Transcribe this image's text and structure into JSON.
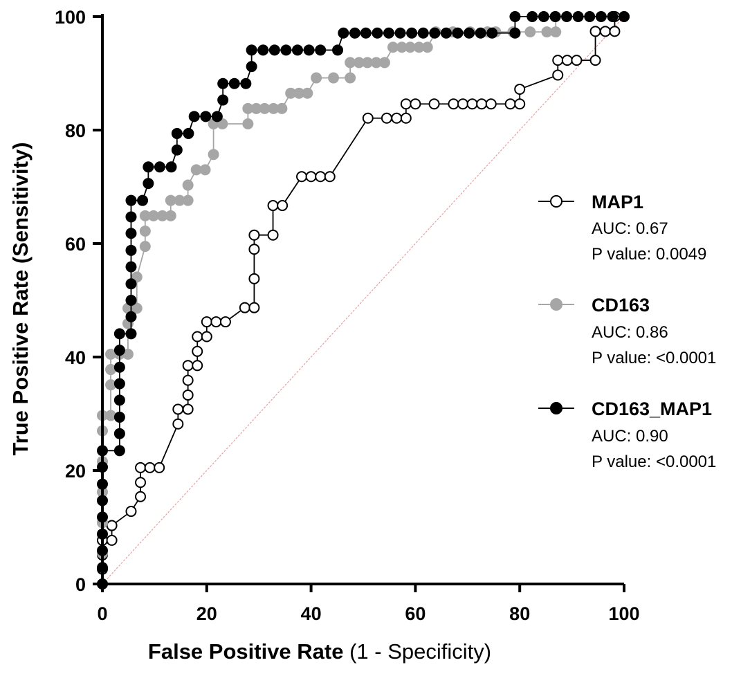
{
  "chart_data": {
    "type": "line",
    "xlabel_bold": "False Positive Rate",
    "xlabel_rest": " (1 - Specificity)",
    "ylabel": "True Positive Rate (Sensitivity)",
    "xlim": [
      0,
      100
    ],
    "ylim": [
      0,
      100
    ],
    "xticks": [
      0,
      20,
      40,
      60,
      80,
      100
    ],
    "yticks": [
      0,
      20,
      40,
      60,
      80,
      100
    ],
    "xtick_labels": [
      "0",
      "20",
      "40",
      "60",
      "80",
      "100"
    ],
    "ytick_labels": [
      "0",
      "20",
      "40",
      "60",
      "80",
      "100"
    ],
    "reference_line": {
      "from": [
        0,
        0
      ],
      "to": [
        100,
        100
      ],
      "color": "#e8a0a0"
    },
    "legend_position": "right",
    "series": [
      {
        "name": "MAP1",
        "auc_label": "AUC: 0.67",
        "p_label": "P value: 0.0049",
        "marker": "open",
        "line_color": "#000000",
        "marker_fill": "#ffffff",
        "marker_stroke": "#000000",
        "points": [
          [
            0,
            0
          ],
          [
            0,
            2.6
          ],
          [
            0,
            5.1
          ],
          [
            0,
            7.7
          ],
          [
            1.8,
            7.7
          ],
          [
            1.8,
            10.3
          ],
          [
            5.5,
            12.8
          ],
          [
            7.3,
            15.4
          ],
          [
            7.3,
            17.9
          ],
          [
            7.3,
            20.5
          ],
          [
            9.1,
            20.5
          ],
          [
            10.9,
            20.5
          ],
          [
            14.5,
            28.2
          ],
          [
            14.5,
            30.8
          ],
          [
            16.4,
            30.8
          ],
          [
            16.4,
            33.3
          ],
          [
            16.4,
            35.9
          ],
          [
            16.4,
            38.5
          ],
          [
            18.2,
            38.5
          ],
          [
            18.2,
            41
          ],
          [
            18.2,
            43.6
          ],
          [
            20,
            43.6
          ],
          [
            20,
            46.2
          ],
          [
            21.8,
            46.2
          ],
          [
            23.6,
            46.2
          ],
          [
            27.3,
            48.7
          ],
          [
            29.1,
            48.7
          ],
          [
            29.1,
            53.8
          ],
          [
            29.1,
            59
          ],
          [
            29.1,
            61.5
          ],
          [
            32.7,
            61.5
          ],
          [
            32.7,
            66.7
          ],
          [
            34.5,
            66.7
          ],
          [
            38.2,
            71.8
          ],
          [
            40,
            71.8
          ],
          [
            41.8,
            71.8
          ],
          [
            43.6,
            71.8
          ],
          [
            50.9,
            82.1
          ],
          [
            54.5,
            82.1
          ],
          [
            56.4,
            82.1
          ],
          [
            58.2,
            82.1
          ],
          [
            58.2,
            84.6
          ],
          [
            60,
            84.6
          ],
          [
            63.6,
            84.6
          ],
          [
            67.3,
            84.6
          ],
          [
            69.1,
            84.6
          ],
          [
            70.9,
            84.6
          ],
          [
            72.7,
            84.6
          ],
          [
            74.5,
            84.6
          ],
          [
            78.2,
            84.6
          ],
          [
            80,
            84.6
          ],
          [
            80,
            87.2
          ],
          [
            87.3,
            89.7
          ],
          [
            87.3,
            92.3
          ],
          [
            89.1,
            92.3
          ],
          [
            90.9,
            92.3
          ],
          [
            94.5,
            92.3
          ],
          [
            94.5,
            97.4
          ],
          [
            96.4,
            97.4
          ],
          [
            98.2,
            97.4
          ],
          [
            98.2,
            100
          ],
          [
            100,
            100
          ]
        ]
      },
      {
        "name": "CD163",
        "auc_label": "AUC: 0.86",
        "p_label": "P value: <0.0001",
        "marker": "filled",
        "line_color": "#a6a6a6",
        "marker_fill": "#a6a6a6",
        "marker_stroke": "#a6a6a6",
        "points": [
          [
            0,
            0
          ],
          [
            0,
            5.4
          ],
          [
            0,
            10.8
          ],
          [
            0,
            16.2
          ],
          [
            0,
            21.6
          ],
          [
            0,
            27
          ],
          [
            0,
            29.7
          ],
          [
            1.6,
            29.7
          ],
          [
            1.6,
            35.1
          ],
          [
            1.6,
            37.8
          ],
          [
            1.6,
            40.5
          ],
          [
            3.3,
            40.5
          ],
          [
            4.9,
            40.5
          ],
          [
            4.9,
            45.9
          ],
          [
            4.9,
            48.6
          ],
          [
            6.6,
            48.6
          ],
          [
            6.6,
            54.1
          ],
          [
            8.2,
            59.5
          ],
          [
            8.2,
            62.2
          ],
          [
            8.2,
            64.9
          ],
          [
            9.8,
            64.9
          ],
          [
            11.5,
            64.9
          ],
          [
            13.1,
            64.9
          ],
          [
            13.1,
            67.6
          ],
          [
            14.8,
            67.6
          ],
          [
            16.4,
            67.6
          ],
          [
            16.4,
            70.3
          ],
          [
            18,
            73
          ],
          [
            19.7,
            73
          ],
          [
            21.3,
            75.7
          ],
          [
            21.3,
            81.1
          ],
          [
            23,
            81.1
          ],
          [
            27.9,
            81.1
          ],
          [
            27.9,
            83.8
          ],
          [
            29.5,
            83.8
          ],
          [
            31.1,
            83.8
          ],
          [
            32.8,
            83.8
          ],
          [
            34.4,
            83.8
          ],
          [
            36.1,
            86.5
          ],
          [
            37.7,
            86.5
          ],
          [
            39.3,
            86.5
          ],
          [
            41,
            89.2
          ],
          [
            44.3,
            89.2
          ],
          [
            47.5,
            89.2
          ],
          [
            47.5,
            91.9
          ],
          [
            49.2,
            91.9
          ],
          [
            50.8,
            91.9
          ],
          [
            52.5,
            91.9
          ],
          [
            54.1,
            91.9
          ],
          [
            55.7,
            94.6
          ],
          [
            57.4,
            94.6
          ],
          [
            59,
            94.6
          ],
          [
            60.7,
            94.6
          ],
          [
            62.3,
            94.6
          ],
          [
            63.9,
            97.3
          ],
          [
            67.2,
            97.3
          ],
          [
            70.5,
            97.3
          ],
          [
            73.8,
            97.3
          ],
          [
            75.4,
            97.3
          ],
          [
            78.7,
            97.3
          ],
          [
            82,
            97.3
          ],
          [
            85.2,
            97.3
          ],
          [
            86.9,
            97.3
          ],
          [
            86.9,
            100
          ],
          [
            100,
            100
          ]
        ]
      },
      {
        "name": "CD163_MAP1",
        "auc_label": "AUC: 0.90",
        "p_label": "P value: <0.0001",
        "marker": "filled",
        "line_color": "#000000",
        "marker_fill": "#000000",
        "marker_stroke": "#000000",
        "points": [
          [
            0,
            0
          ],
          [
            0,
            2.9
          ],
          [
            0,
            5.9
          ],
          [
            0,
            8.8
          ],
          [
            0,
            11.8
          ],
          [
            0,
            14.7
          ],
          [
            0,
            17.6
          ],
          [
            0,
            20.6
          ],
          [
            0,
            23.5
          ],
          [
            3.3,
            23.5
          ],
          [
            3.3,
            26.5
          ],
          [
            3.3,
            29.4
          ],
          [
            3.3,
            32.4
          ],
          [
            3.3,
            35.3
          ],
          [
            3.3,
            38.2
          ],
          [
            3.3,
            41.2
          ],
          [
            3.3,
            44.1
          ],
          [
            5.5,
            44.1
          ],
          [
            5.5,
            47.1
          ],
          [
            5.5,
            50
          ],
          [
            5.5,
            52.9
          ],
          [
            5.5,
            55.9
          ],
          [
            5.5,
            58.8
          ],
          [
            5.5,
            61.8
          ],
          [
            5.5,
            64.7
          ],
          [
            5.5,
            67.6
          ],
          [
            7.7,
            67.6
          ],
          [
            8.8,
            70.6
          ],
          [
            8.8,
            73.5
          ],
          [
            11,
            73.5
          ],
          [
            13.2,
            73.5
          ],
          [
            14.3,
            76.5
          ],
          [
            14.3,
            79.4
          ],
          [
            16.5,
            79.4
          ],
          [
            17.6,
            82.4
          ],
          [
            19.8,
            82.4
          ],
          [
            22,
            82.4
          ],
          [
            23.1,
            85.3
          ],
          [
            23.1,
            88.2
          ],
          [
            25.3,
            88.2
          ],
          [
            27.5,
            88.2
          ],
          [
            28.6,
            91.2
          ],
          [
            28.6,
            94.1
          ],
          [
            30.8,
            94.1
          ],
          [
            33,
            94.1
          ],
          [
            35.2,
            94.1
          ],
          [
            37.4,
            94.1
          ],
          [
            39.6,
            94.1
          ],
          [
            41.8,
            94.1
          ],
          [
            45.1,
            94.1
          ],
          [
            46.2,
            97.1
          ],
          [
            48.4,
            97.1
          ],
          [
            50.5,
            97.1
          ],
          [
            52.7,
            97.1
          ],
          [
            54.9,
            97.1
          ],
          [
            57.1,
            97.1
          ],
          [
            59.3,
            97.1
          ],
          [
            61.5,
            97.1
          ],
          [
            63.7,
            97.1
          ],
          [
            65.9,
            97.1
          ],
          [
            68.1,
            97.1
          ],
          [
            70.3,
            97.1
          ],
          [
            72.5,
            97.1
          ],
          [
            74.7,
            97.1
          ],
          [
            79.1,
            97.1
          ],
          [
            79.1,
            100
          ],
          [
            82.4,
            100
          ],
          [
            84.6,
            100
          ],
          [
            86.8,
            100
          ],
          [
            89,
            100
          ],
          [
            91.2,
            100
          ],
          [
            93.4,
            100
          ],
          [
            95.6,
            100
          ],
          [
            97.8,
            100
          ],
          [
            100,
            100
          ]
        ]
      }
    ]
  }
}
